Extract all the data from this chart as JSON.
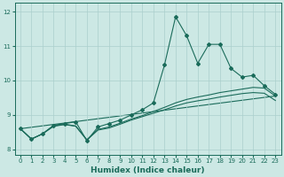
{
  "xlabel": "Humidex (Indice chaleur)",
  "xlim": [
    -0.5,
    23.5
  ],
  "ylim": [
    7.85,
    12.25
  ],
  "yticks": [
    8,
    9,
    10,
    11,
    12
  ],
  "xticks": [
    0,
    1,
    2,
    3,
    4,
    5,
    6,
    7,
    8,
    9,
    10,
    11,
    12,
    13,
    14,
    15,
    16,
    17,
    18,
    19,
    20,
    21,
    22,
    23
  ],
  "bg_color": "#cce8e4",
  "line_color": "#1a6b5a",
  "grid_color": "#aacfcc",
  "line_main": {
    "x": [
      0,
      1,
      2,
      3,
      4,
      5,
      6,
      7,
      8,
      9,
      10,
      11,
      12,
      13,
      14,
      15,
      16,
      17,
      18,
      19,
      20,
      21,
      22,
      23
    ],
    "y": [
      8.6,
      8.3,
      8.45,
      8.7,
      8.75,
      8.8,
      8.25,
      8.65,
      8.75,
      8.85,
      9.0,
      9.15,
      9.35,
      10.45,
      11.85,
      11.3,
      10.5,
      11.05,
      11.05,
      10.35,
      10.1,
      10.15,
      9.85,
      9.6
    ]
  },
  "line_smooth1": {
    "x": [
      0,
      1,
      2,
      3,
      4,
      5,
      6,
      7,
      8,
      9,
      10,
      11,
      12,
      13,
      14,
      15,
      16,
      17,
      18,
      19,
      20,
      21,
      22,
      23
    ],
    "y": [
      8.6,
      8.3,
      8.45,
      8.68,
      8.73,
      8.68,
      8.28,
      8.58,
      8.65,
      8.76,
      8.88,
      8.98,
      9.1,
      9.22,
      9.35,
      9.45,
      9.52,
      9.58,
      9.65,
      9.7,
      9.75,
      9.8,
      9.78,
      9.55
    ]
  },
  "line_smooth2": {
    "x": [
      0,
      1,
      2,
      3,
      4,
      5,
      6,
      7,
      8,
      9,
      10,
      11,
      12,
      13,
      14,
      15,
      16,
      17,
      18,
      19,
      20,
      21,
      22,
      23
    ],
    "y": [
      8.6,
      8.3,
      8.45,
      8.67,
      8.72,
      8.67,
      8.27,
      8.56,
      8.62,
      8.73,
      8.85,
      8.95,
      9.05,
      9.15,
      9.26,
      9.35,
      9.41,
      9.46,
      9.52,
      9.57,
      9.62,
      9.65,
      9.63,
      9.42
    ]
  },
  "line_trend": {
    "x": [
      0,
      23
    ],
    "y": [
      8.6,
      9.55
    ]
  }
}
